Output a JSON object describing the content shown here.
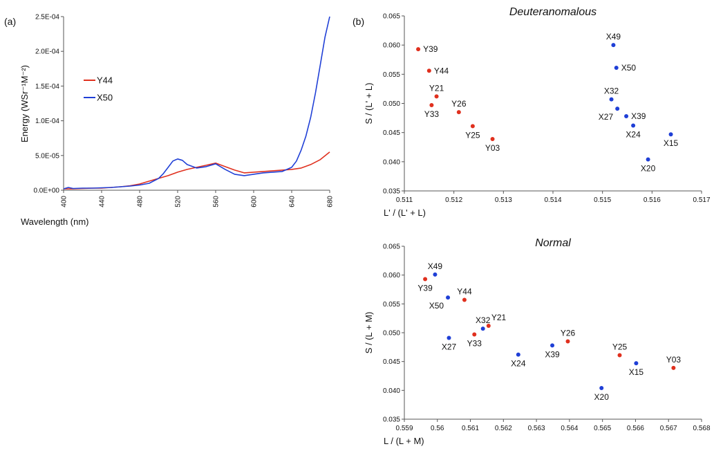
{
  "chart_data": [
    {
      "id": "a",
      "panel_label": "(a)",
      "type": "line",
      "title": "",
      "xlabel": "Wavelength (nm)",
      "ylabel": "Energy (WSr⁻¹M⁻²)",
      "xlim": [
        400,
        680
      ],
      "ylim": [
        0,
        0.00025
      ],
      "x_ticks": [
        400,
        440,
        480,
        520,
        560,
        600,
        640,
        680
      ],
      "y_ticks": [
        0,
        5e-05,
        0.0001,
        0.00015,
        0.0002,
        0.00025
      ],
      "y_tick_labels": [
        "0.0E+00",
        "5.0E-05",
        "1.0E-04",
        "1.5E-04",
        "2.0E-04",
        "2.5E-04"
      ],
      "grid": false,
      "legend": "upper-left",
      "series": [
        {
          "name": "Y44",
          "color": "#e0301e",
          "x": [
            400,
            410,
            420,
            430,
            440,
            450,
            460,
            470,
            480,
            490,
            500,
            510,
            520,
            530,
            540,
            550,
            560,
            570,
            580,
            590,
            600,
            610,
            620,
            630,
            640,
            650,
            660,
            670,
            680
          ],
          "y": [
            2e-06,
            2e-06,
            2.5e-06,
            3e-06,
            3e-06,
            4e-06,
            5e-06,
            6.5e-06,
            9e-06,
            1.3e-05,
            1.7e-05,
            2.1e-05,
            2.6e-05,
            3e-05,
            3.3e-05,
            3.6e-05,
            3.9e-05,
            3.4e-05,
            2.9e-05,
            2.5e-05,
            2.6e-05,
            2.7e-05,
            2.8e-05,
            2.9e-05,
            3e-05,
            3.2e-05,
            3.7e-05,
            4.4e-05,
            5.5e-05
          ]
        },
        {
          "name": "X50",
          "color": "#1f3fd6",
          "x": [
            400,
            405,
            410,
            420,
            430,
            440,
            450,
            460,
            470,
            480,
            490,
            500,
            505,
            510,
            515,
            520,
            525,
            530,
            540,
            550,
            560,
            570,
            580,
            590,
            600,
            610,
            620,
            630,
            640,
            645,
            650,
            655,
            660,
            665,
            670,
            675,
            680
          ],
          "y": [
            2e-06,
            4e-06,
            2.5e-06,
            3e-06,
            3e-06,
            3.5e-06,
            4e-06,
            5e-06,
            6e-06,
            7.5e-06,
            1e-05,
            1.7e-05,
            2.4e-05,
            3.3e-05,
            4.2e-05,
            4.5e-05,
            4.3e-05,
            3.7e-05,
            3.2e-05,
            3.4e-05,
            3.8e-05,
            3e-05,
            2.3e-05,
            2.1e-05,
            2.3e-05,
            2.5e-05,
            2.6e-05,
            2.7e-05,
            3.3e-05,
            4.2e-05,
            5.8e-05,
            7.8e-05,
            0.000105,
            0.00014,
            0.00018,
            0.00022,
            0.00025
          ]
        }
      ]
    },
    {
      "id": "b-top",
      "panel_label": "(b)",
      "type": "scatter",
      "title": "Deuteranomalous",
      "xlabel": "L' / (L' + L)",
      "ylabel": "S / (L' + L)",
      "xlim": [
        0.511,
        0.517
      ],
      "ylim": [
        0.035,
        0.065
      ],
      "x_ticks": [
        0.511,
        0.512,
        0.513,
        0.514,
        0.515,
        0.516,
        0.517
      ],
      "y_ticks": [
        0.035,
        0.04,
        0.045,
        0.05,
        0.055,
        0.06,
        0.065
      ],
      "y_tick_labels": [
        "0.035",
        "0.040",
        "0.045",
        "0.050",
        "0.055",
        "0.060",
        "0.065"
      ],
      "grid": false,
      "points": [
        {
          "label": "Y39",
          "x": 0.51128,
          "y": 0.0593,
          "color": "#e0301e",
          "label_pos": "right"
        },
        {
          "label": "Y44",
          "x": 0.5115,
          "y": 0.0556,
          "color": "#e0301e",
          "label_pos": "right"
        },
        {
          "label": "Y21",
          "x": 0.51165,
          "y": 0.0512,
          "color": "#e0301e",
          "label_pos": "above"
        },
        {
          "label": "Y33",
          "x": 0.51155,
          "y": 0.0497,
          "color": "#e0301e",
          "label_pos": "below"
        },
        {
          "label": "Y26",
          "x": 0.5121,
          "y": 0.0485,
          "color": "#e0301e",
          "label_pos": "above"
        },
        {
          "label": "Y25",
          "x": 0.51238,
          "y": 0.0461,
          "color": "#e0301e",
          "label_pos": "below"
        },
        {
          "label": "Y03",
          "x": 0.51278,
          "y": 0.0439,
          "color": "#e0301e",
          "label_pos": "below"
        },
        {
          "label": "X49",
          "x": 0.51522,
          "y": 0.06,
          "color": "#1f3fd6",
          "label_pos": "above"
        },
        {
          "label": "X50",
          "x": 0.51528,
          "y": 0.0561,
          "color": "#1f3fd6",
          "label_pos": "right"
        },
        {
          "label": "X32",
          "x": 0.51518,
          "y": 0.0507,
          "color": "#1f3fd6",
          "label_pos": "above"
        },
        {
          "label": "X27",
          "x": 0.5153,
          "y": 0.0491,
          "color": "#1f3fd6",
          "label_pos": "below-left"
        },
        {
          "label": "X39",
          "x": 0.51548,
          "y": 0.0478,
          "color": "#1f3fd6",
          "label_pos": "right"
        },
        {
          "label": "X24",
          "x": 0.51562,
          "y": 0.0462,
          "color": "#1f3fd6",
          "label_pos": "below"
        },
        {
          "label": "X15",
          "x": 0.51638,
          "y": 0.0447,
          "color": "#1f3fd6",
          "label_pos": "below"
        },
        {
          "label": "X20",
          "x": 0.51592,
          "y": 0.0404,
          "color": "#1f3fd6",
          "label_pos": "below"
        }
      ]
    },
    {
      "id": "b-bottom",
      "panel_label": "",
      "type": "scatter",
      "title": "Normal",
      "xlabel": "L / (L + M)",
      "ylabel": "S / (L + M)",
      "xlim": [
        0.559,
        0.568
      ],
      "ylim": [
        0.035,
        0.065
      ],
      "x_ticks": [
        0.559,
        0.56,
        0.561,
        0.562,
        0.563,
        0.564,
        0.565,
        0.566,
        0.567,
        0.568
      ],
      "y_ticks": [
        0.035,
        0.04,
        0.045,
        0.05,
        0.055,
        0.06,
        0.065
      ],
      "y_tick_labels": [
        "0.035",
        "0.040",
        "0.045",
        "0.050",
        "0.055",
        "0.060",
        "0.065"
      ],
      "grid": false,
      "points": [
        {
          "label": "X49",
          "x": 0.55993,
          "y": 0.0601,
          "color": "#1f3fd6",
          "label_pos": "above"
        },
        {
          "label": "Y39",
          "x": 0.55963,
          "y": 0.0593,
          "color": "#e0301e",
          "label_pos": "below"
        },
        {
          "label": "X50",
          "x": 0.56032,
          "y": 0.0561,
          "color": "#1f3fd6",
          "label_pos": "below-left"
        },
        {
          "label": "Y44",
          "x": 0.56082,
          "y": 0.0557,
          "color": "#e0301e",
          "label_pos": "above"
        },
        {
          "label": "X32",
          "x": 0.56138,
          "y": 0.0507,
          "color": "#1f3fd6",
          "label_pos": "above"
        },
        {
          "label": "Y21",
          "x": 0.56155,
          "y": 0.0512,
          "color": "#e0301e",
          "label_pos": "above-right"
        },
        {
          "label": "Y33",
          "x": 0.56112,
          "y": 0.0497,
          "color": "#e0301e",
          "label_pos": "below"
        },
        {
          "label": "X27",
          "x": 0.56035,
          "y": 0.0491,
          "color": "#1f3fd6",
          "label_pos": "below"
        },
        {
          "label": "X24",
          "x": 0.56245,
          "y": 0.0462,
          "color": "#1f3fd6",
          "label_pos": "below"
        },
        {
          "label": "X39",
          "x": 0.56348,
          "y": 0.0478,
          "color": "#1f3fd6",
          "label_pos": "below"
        },
        {
          "label": "Y26",
          "x": 0.56395,
          "y": 0.0485,
          "color": "#e0301e",
          "label_pos": "above"
        },
        {
          "label": "Y25",
          "x": 0.56552,
          "y": 0.0461,
          "color": "#e0301e",
          "label_pos": "above"
        },
        {
          "label": "X15",
          "x": 0.56602,
          "y": 0.0447,
          "color": "#1f3fd6",
          "label_pos": "below"
        },
        {
          "label": "X20",
          "x": 0.56497,
          "y": 0.0404,
          "color": "#1f3fd6",
          "label_pos": "below"
        },
        {
          "label": "Y03",
          "x": 0.56715,
          "y": 0.0439,
          "color": "#e0301e",
          "label_pos": "above"
        }
      ]
    }
  ]
}
